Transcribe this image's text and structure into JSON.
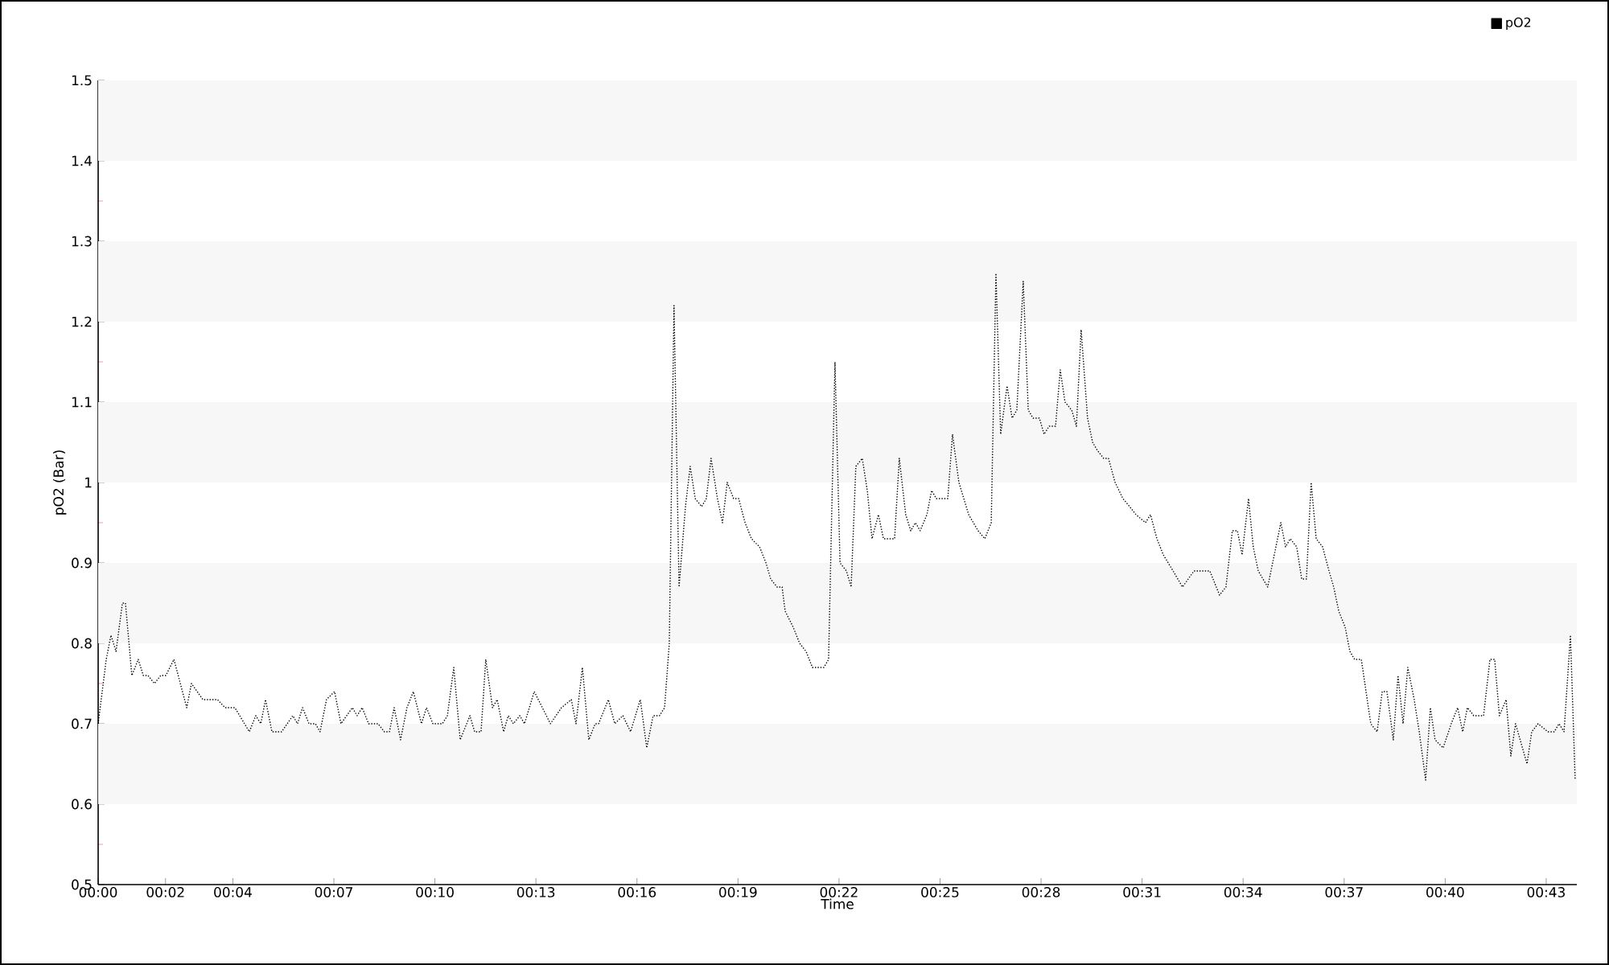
{
  "chart_data": {
    "type": "line",
    "xlabel": "Time",
    "ylabel": "pO2 (Bar)",
    "xlim": [
      0,
      43.91
    ],
    "ylim": [
      0.5,
      1.5
    ],
    "xticks": [
      {
        "value": 0,
        "label": "00:00"
      },
      {
        "value": 2,
        "label": "00:02"
      },
      {
        "value": 4,
        "label": "00:04"
      },
      {
        "value": 7,
        "label": "00:07"
      },
      {
        "value": 10,
        "label": "00:10"
      },
      {
        "value": 13,
        "label": "00:13"
      },
      {
        "value": 16,
        "label": "00:16"
      },
      {
        "value": 19,
        "label": "00:19"
      },
      {
        "value": 22,
        "label": "00:22"
      },
      {
        "value": 25,
        "label": "00:25"
      },
      {
        "value": 28,
        "label": "00:28"
      },
      {
        "value": 31,
        "label": "00:31"
      },
      {
        "value": 34,
        "label": "00:34"
      },
      {
        "value": 37,
        "label": "00:37"
      },
      {
        "value": 40,
        "label": "00:40"
      },
      {
        "value": 43,
        "label": "00:43"
      }
    ],
    "yticks": [
      0.5,
      0.6,
      0.7,
      0.8,
      0.9,
      1,
      1.1,
      1.2,
      1.3,
      1.4,
      1.5
    ],
    "legend": "top right",
    "marker": "none",
    "line_style": "dotted",
    "x": [
      0,
      0.24,
      0.38,
      0.53,
      0.72,
      0.81,
      1,
      1.19,
      1.34,
      1.48,
      1.67,
      1.86,
      2.01,
      2.25,
      2.63,
      2.77,
      3.11,
      3.54,
      3.77,
      4.06,
      4.49,
      4.68,
      4.83,
      4.97,
      5.16,
      5.45,
      5.78,
      5.92,
      6.07,
      6.26,
      6.45,
      6.59,
      6.78,
      7.02,
      7.21,
      7.55,
      7.69,
      7.84,
      8.03,
      8.31,
      8.5,
      8.65,
      8.79,
      8.98,
      9.17,
      9.36,
      9.6,
      9.75,
      9.94,
      10.22,
      10.37,
      10.56,
      10.75,
      11.04,
      11.18,
      11.37,
      11.51,
      11.71,
      11.85,
      12.04,
      12.18,
      12.33,
      12.52,
      12.66,
      12.95,
      13.43,
      13.76,
      14.05,
      14.19,
      14.38,
      14.57,
      14.76,
      14.86,
      15.15,
      15.34,
      15.58,
      15.81,
      16.1,
      16.29,
      16.48,
      16.67,
      16.82,
      16.96,
      17.1,
      17.25,
      17.44,
      17.58,
      17.73,
      17.92,
      18.06,
      18.2,
      18.39,
      18.54,
      18.68,
      18.87,
      19.02,
      19.21,
      19.4,
      19.64,
      19.83,
      19.97,
      20.16,
      20.31,
      20.4,
      20.64,
      20.83,
      21.02,
      21.21,
      21.55,
      21.69,
      21.88,
      22.03,
      22.22,
      22.36,
      22.5,
      22.69,
      22.84,
      22.98,
      23.17,
      23.32,
      23.65,
      23.79,
      23.98,
      24.13,
      24.27,
      24.41,
      24.61,
      24.75,
      24.89,
      25.23,
      25.37,
      25.56,
      25.85,
      26.13,
      26.33,
      26.52,
      26.66,
      26.8,
      26.99,
      27.14,
      27.28,
      27.47,
      27.62,
      27.76,
      27.95,
      28.09,
      28.24,
      28.43,
      28.57,
      28.71,
      28.91,
      29.05,
      29.19,
      29.38,
      29.53,
      29.67,
      29.86,
      30,
      30.2,
      30.43,
      30.63,
      30.82,
      31.1,
      31.25,
      31.44,
      31.63,
      31.92,
      32.2,
      32.54,
      33.01,
      33.3,
      33.49,
      33.68,
      33.83,
      33.97,
      34.16,
      34.3,
      34.45,
      34.73,
      35.12,
      35.26,
      35.4,
      35.59,
      35.74,
      35.88,
      36.02,
      36.17,
      36.36,
      36.55,
      36.69,
      36.84,
      37.03,
      37.17,
      37.31,
      37.51,
      37.65,
      37.79,
      37.98,
      38.13,
      38.27,
      38.46,
      38.6,
      38.75,
      38.89,
      39.08,
      39.23,
      39.42,
      39.56,
      39.7,
      39.94,
      40.18,
      40.37,
      40.52,
      40.66,
      40.85,
      41.14,
      41.33,
      41.47,
      41.61,
      41.81,
      41.95,
      42.09,
      42.43,
      42.57,
      42.76,
      43.05,
      43.24,
      43.38,
      43.53,
      43.72,
      43.86
    ],
    "series": [
      {
        "name": "pO2",
        "color": "#000000",
        "values": [
          0.7,
          0.78,
          0.81,
          0.79,
          0.85,
          0.85,
          0.76,
          0.78,
          0.76,
          0.76,
          0.75,
          0.76,
          0.76,
          0.78,
          0.72,
          0.75,
          0.73,
          0.73,
          0.72,
          0.72,
          0.69,
          0.71,
          0.7,
          0.73,
          0.69,
          0.69,
          0.71,
          0.7,
          0.72,
          0.7,
          0.7,
          0.69,
          0.73,
          0.74,
          0.7,
          0.72,
          0.71,
          0.72,
          0.7,
          0.7,
          0.69,
          0.69,
          0.72,
          0.68,
          0.72,
          0.74,
          0.7,
          0.72,
          0.7,
          0.7,
          0.71,
          0.77,
          0.68,
          0.71,
          0.69,
          0.69,
          0.78,
          0.72,
          0.73,
          0.69,
          0.71,
          0.7,
          0.71,
          0.7,
          0.74,
          0.7,
          0.72,
          0.73,
          0.7,
          0.77,
          0.68,
          0.7,
          0.7,
          0.73,
          0.7,
          0.71,
          0.69,
          0.73,
          0.67,
          0.71,
          0.71,
          0.72,
          0.8,
          1.22,
          0.87,
          0.97,
          1.02,
          0.98,
          0.97,
          0.98,
          1.03,
          0.98,
          0.95,
          1.0,
          0.98,
          0.98,
          0.95,
          0.93,
          0.92,
          0.9,
          0.88,
          0.87,
          0.87,
          0.84,
          0.82,
          0.8,
          0.79,
          0.77,
          0.77,
          0.78,
          1.15,
          0.9,
          0.89,
          0.87,
          1.02,
          1.03,
          0.99,
          0.93,
          0.96,
          0.93,
          0.93,
          1.03,
          0.96,
          0.94,
          0.95,
          0.94,
          0.96,
          0.99,
          0.98,
          0.98,
          1.06,
          1.0,
          0.96,
          0.94,
          0.93,
          0.95,
          1.26,
          1.06,
          1.12,
          1.08,
          1.09,
          1.25,
          1.09,
          1.08,
          1.08,
          1.06,
          1.07,
          1.07,
          1.14,
          1.1,
          1.09,
          1.07,
          1.19,
          1.08,
          1.05,
          1.04,
          1.03,
          1.03,
          1.0,
          0.98,
          0.97,
          0.96,
          0.95,
          0.96,
          0.93,
          0.91,
          0.89,
          0.87,
          0.89,
          0.89,
          0.86,
          0.87,
          0.94,
          0.94,
          0.91,
          0.98,
          0.92,
          0.89,
          0.87,
          0.95,
          0.92,
          0.93,
          0.92,
          0.88,
          0.88,
          1.0,
          0.93,
          0.92,
          0.89,
          0.87,
          0.84,
          0.82,
          0.79,
          0.78,
          0.78,
          0.74,
          0.7,
          0.69,
          0.74,
          0.74,
          0.68,
          0.76,
          0.7,
          0.77,
          0.73,
          0.69,
          0.63,
          0.72,
          0.68,
          0.67,
          0.7,
          0.72,
          0.69,
          0.72,
          0.71,
          0.71,
          0.78,
          0.78,
          0.71,
          0.73,
          0.66,
          0.7,
          0.65,
          0.69,
          0.7,
          0.69,
          0.69,
          0.7,
          0.69,
          0.81,
          0.63
        ]
      }
    ]
  }
}
